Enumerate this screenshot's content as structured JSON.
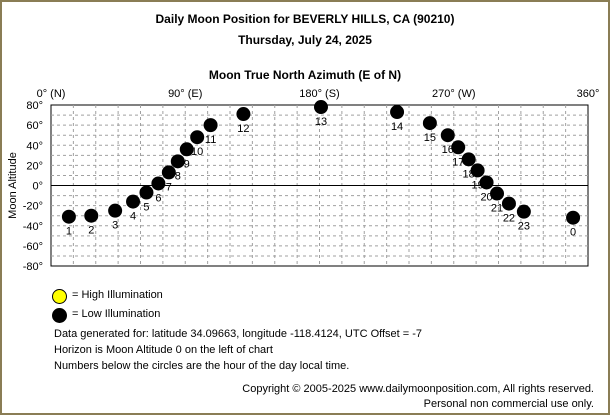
{
  "header": {
    "title": "Daily Moon Position for BEVERLY HILLS, CA (90210)",
    "date": "Thursday, July 24, 2025",
    "axis_title": "Moon True North Azimuth (E of N)"
  },
  "legend": {
    "high_label": "= High Illumination",
    "low_label": "= Low Illumination",
    "high_color": "#ffff00",
    "low_color": "#000000"
  },
  "info": {
    "line1": "Data generated for: latitude 34.09663, longitude -118.4124, UTC Offset = -7",
    "line2": "Horizon is Moon Altitude 0 on the left of chart",
    "line3": "Numbers below the circles are the hour of the day local time."
  },
  "footer": {
    "copyright": "Copyright © 2005-2025 www.dailymoonposition.com, All rights reserved.",
    "personal": "Personal non commercial use only."
  },
  "chart_data": {
    "type": "scatter",
    "title": "Moon True North Azimuth (E of N)",
    "xlabel": "Moon True North Azimuth (E of N)",
    "ylabel": "Moon Altitude",
    "xlim": [
      0,
      360
    ],
    "ylim": [
      -80,
      80
    ],
    "grid": true,
    "x_ticks": [
      {
        "value": 0,
        "label": "0° (N)"
      },
      {
        "value": 90,
        "label": "90° (E)"
      },
      {
        "value": 180,
        "label": "180° (S)"
      },
      {
        "value": 270,
        "label": "270° (W)"
      },
      {
        "value": 360,
        "label": "360°"
      }
    ],
    "y_ticks": [
      {
        "value": 80,
        "label": "80°"
      },
      {
        "value": 60,
        "label": "60°"
      },
      {
        "value": 40,
        "label": "40°"
      },
      {
        "value": 20,
        "label": "20°"
      },
      {
        "value": 0,
        "label": "0°"
      },
      {
        "value": -20,
        "label": "-20°"
      },
      {
        "value": -40,
        "label": "-40°"
      },
      {
        "value": -60,
        "label": "-60°"
      },
      {
        "value": -80,
        "label": "-80°"
      }
    ],
    "points": [
      {
        "hour": "1",
        "azimuth": 12,
        "altitude": -31,
        "illumination": "low"
      },
      {
        "hour": "2",
        "azimuth": 27,
        "altitude": -30,
        "illumination": "low"
      },
      {
        "hour": "3",
        "azimuth": 43,
        "altitude": -25,
        "illumination": "low"
      },
      {
        "hour": "4",
        "azimuth": 55,
        "altitude": -16,
        "illumination": "low"
      },
      {
        "hour": "5",
        "azimuth": 64,
        "altitude": -7,
        "illumination": "low"
      },
      {
        "hour": "6",
        "azimuth": 72,
        "altitude": 2,
        "illumination": "low"
      },
      {
        "hour": "7",
        "azimuth": 79,
        "altitude": 13,
        "illumination": "low"
      },
      {
        "hour": "8",
        "azimuth": 85,
        "altitude": 24,
        "illumination": "low"
      },
      {
        "hour": "9",
        "azimuth": 91,
        "altitude": 36,
        "illumination": "low"
      },
      {
        "hour": "10",
        "azimuth": 98,
        "altitude": 48,
        "illumination": "low"
      },
      {
        "hour": "11",
        "azimuth": 107,
        "altitude": 60,
        "illumination": "low"
      },
      {
        "hour": "12",
        "azimuth": 129,
        "altitude": 71,
        "illumination": "low"
      },
      {
        "hour": "13",
        "azimuth": 181,
        "altitude": 78,
        "illumination": "low"
      },
      {
        "hour": "14",
        "azimuth": 232,
        "altitude": 73,
        "illumination": "low"
      },
      {
        "hour": "15",
        "azimuth": 254,
        "altitude": 62,
        "illumination": "low"
      },
      {
        "hour": "16",
        "azimuth": 266,
        "altitude": 50,
        "illumination": "low"
      },
      {
        "hour": "17",
        "azimuth": 273,
        "altitude": 38,
        "illumination": "low"
      },
      {
        "hour": "18",
        "azimuth": 280,
        "altitude": 26,
        "illumination": "low"
      },
      {
        "hour": "19",
        "azimuth": 286,
        "altitude": 15,
        "illumination": "low"
      },
      {
        "hour": "20",
        "azimuth": 292,
        "altitude": 3,
        "illumination": "low"
      },
      {
        "hour": "21",
        "azimuth": 299,
        "altitude": -8,
        "illumination": "low"
      },
      {
        "hour": "22",
        "azimuth": 307,
        "altitude": -18,
        "illumination": "low"
      },
      {
        "hour": "23",
        "azimuth": 317,
        "altitude": -26,
        "illumination": "low"
      },
      {
        "hour": "0",
        "azimuth": 350,
        "altitude": -32,
        "illumination": "low"
      }
    ]
  }
}
